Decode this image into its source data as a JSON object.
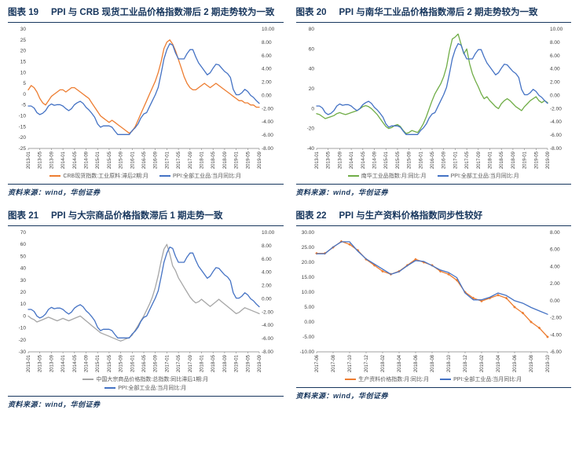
{
  "page": {
    "background": "#ffffff",
    "accent_navy": "#17365D",
    "source_label": "资料来源：wind，华创证券"
  },
  "axes": {
    "months_2013_2019": [
      "2013-01",
      "2013-02",
      "2013-03",
      "2013-04",
      "2013-05",
      "2013-06",
      "2013-07",
      "2013-08",
      "2013-09",
      "2013-10",
      "2013-11",
      "2013-12",
      "2014-01",
      "2014-02",
      "2014-03",
      "2014-04",
      "2014-05",
      "2014-06",
      "2014-07",
      "2014-08",
      "2014-09",
      "2014-10",
      "2014-11",
      "2014-12",
      "2015-01",
      "2015-02",
      "2015-03",
      "2015-04",
      "2015-05",
      "2015-06",
      "2015-07",
      "2015-08",
      "2015-09",
      "2015-10",
      "2015-11",
      "2015-12",
      "2016-01",
      "2016-02",
      "2016-03",
      "2016-04",
      "2016-05",
      "2016-06",
      "2016-07",
      "2016-08",
      "2016-09",
      "2016-10",
      "2016-11",
      "2016-12",
      "2017-01",
      "2017-02",
      "2017-03",
      "2017-04",
      "2017-05",
      "2017-06",
      "2017-07",
      "2017-08",
      "2017-09",
      "2017-10",
      "2017-11",
      "2017-12",
      "2018-01",
      "2018-02",
      "2018-03",
      "2018-04",
      "2018-05",
      "2018-06",
      "2018-07",
      "2018-08",
      "2018-09",
      "2018-10",
      "2018-11",
      "2018-12",
      "2019-01",
      "2019-02",
      "2019-03",
      "2019-04",
      "2019-05",
      "2019-06",
      "2019-07",
      "2019-08",
      "2019-09"
    ],
    "months_2017_2019": [
      "2017-06",
      "2017-07",
      "2017-08",
      "2017-09",
      "2017-10",
      "2017-11",
      "2017-12",
      "2018-01",
      "2018-02",
      "2018-03",
      "2018-04",
      "2018-05",
      "2018-06",
      "2018-07",
      "2018-08",
      "2018-09",
      "2018-10",
      "2018-11",
      "2018-12",
      "2019-01",
      "2019-02",
      "2019-03",
      "2019-04",
      "2019-05",
      "2019-06",
      "2019-07",
      "2019-08",
      "2019-09",
      "2019-10"
    ]
  },
  "chart_data": [
    {
      "type": "line",
      "fig_label": "图表 19",
      "title": "PPI 与 CRB 现货工业品价格指数滞后 2 期走势较为一致",
      "x_key": "months_2013_2019",
      "tick_every": 4,
      "ylim_left": [
        -25,
        30
      ],
      "left_ticks": [
        30,
        25,
        20,
        15,
        10,
        5,
        0,
        -5,
        -10,
        -15,
        -20,
        -25
      ],
      "left_decimals": 0,
      "ylim_right": [
        -8,
        10
      ],
      "right_ticks": [
        10,
        8,
        6,
        4,
        2,
        0,
        -2,
        -4,
        -6,
        -8
      ],
      "legend_stacked": false,
      "series": [
        {
          "name": "CRB现货指数:工业原料:滞后2期:月",
          "color": "#ED7D31",
          "axis": "left",
          "marker": false,
          "values": [
            2,
            4,
            3,
            1,
            -2,
            -4,
            -5,
            -3,
            -1,
            0,
            1,
            2,
            2,
            1,
            2,
            3,
            3,
            2,
            1,
            0,
            -1,
            -2,
            -4,
            -6,
            -8,
            -10,
            -11,
            -12,
            -13,
            -12,
            -13,
            -14,
            -15,
            -16,
            -17,
            -18,
            -17,
            -15,
            -12,
            -9,
            -6,
            -3,
            0,
            3,
            6,
            10,
            15,
            21,
            24,
            25,
            23,
            20,
            16,
            12,
            8,
            5,
            3,
            2,
            2,
            3,
            4,
            5,
            4,
            3,
            4,
            5,
            4,
            3,
            2,
            1,
            0,
            -1,
            -2,
            -3,
            -3,
            -4,
            -4,
            -5,
            -5,
            -6,
            -6
          ]
        },
        {
          "name": "PPI:全部工业品:当月同比:月",
          "color": "#4472C4",
          "axis": "right",
          "marker": false,
          "values": [
            -1.6,
            -1.6,
            -1.9,
            -2.6,
            -2.9,
            -2.7,
            -2.3,
            -1.6,
            -1.3,
            -1.5,
            -1.4,
            -1.4,
            -1.6,
            -2.0,
            -2.3,
            -2.0,
            -1.4,
            -1.1,
            -0.9,
            -1.2,
            -1.8,
            -2.2,
            -2.7,
            -3.3,
            -4.3,
            -4.8,
            -4.6,
            -4.6,
            -4.6,
            -4.8,
            -5.4,
            -5.9,
            -5.9,
            -5.9,
            -5.9,
            -5.9,
            -5.3,
            -4.9,
            -4.3,
            -3.4,
            -2.8,
            -2.6,
            -1.7,
            -0.8,
            0.1,
            1.2,
            3.3,
            5.5,
            6.9,
            7.8,
            7.6,
            6.4,
            5.5,
            5.5,
            5.5,
            6.3,
            6.9,
            6.9,
            5.8,
            4.9,
            4.3,
            3.7,
            3.1,
            3.4,
            4.1,
            4.7,
            4.6,
            4.1,
            3.6,
            3.3,
            2.7,
            0.9,
            0.1,
            0.1,
            0.4,
            0.9,
            0.6,
            0.0,
            -0.3,
            -0.8,
            -1.2
          ]
        }
      ]
    },
    {
      "type": "line",
      "fig_label": "图表 20",
      "title": "PPI 与南华工业品价格指数滞后 2 期走势较为一致",
      "x_key": "months_2013_2019",
      "tick_every": 4,
      "ylim_left": [
        -40,
        80
      ],
      "left_ticks": [
        80,
        60,
        40,
        20,
        0,
        -20,
        -40
      ],
      "left_decimals": 0,
      "ylim_right": [
        -8,
        10
      ],
      "right_ticks": [
        10,
        8,
        6,
        4,
        2,
        0,
        -2,
        -4,
        -6,
        -8
      ],
      "legend_stacked": false,
      "series": [
        {
          "name": "南华工业品指数:月:同比:月",
          "color": "#70AD47",
          "axis": "left",
          "marker": false,
          "values": [
            -5,
            -6,
            -8,
            -10,
            -9,
            -8,
            -7,
            -5,
            -4,
            -5,
            -6,
            -5,
            -4,
            -3,
            -2,
            0,
            2,
            3,
            2,
            0,
            -3,
            -6,
            -10,
            -14,
            -18,
            -20,
            -19,
            -17,
            -16,
            -18,
            -22,
            -25,
            -24,
            -22,
            -23,
            -24,
            -20,
            -15,
            -8,
            0,
            8,
            15,
            20,
            25,
            32,
            42,
            58,
            70,
            72,
            75,
            65,
            55,
            60,
            45,
            35,
            28,
            22,
            15,
            10,
            12,
            8,
            5,
            2,
            0,
            5,
            8,
            10,
            8,
            5,
            2,
            0,
            -2,
            2,
            5,
            8,
            10,
            12,
            8,
            6,
            8,
            6
          ]
        },
        {
          "name": "PPI:全部工业品:当月同比:月",
          "color": "#4472C4",
          "axis": "right",
          "marker": false,
          "values": [
            -1.6,
            -1.6,
            -1.9,
            -2.6,
            -2.9,
            -2.7,
            -2.3,
            -1.6,
            -1.3,
            -1.5,
            -1.4,
            -1.4,
            -1.6,
            -2.0,
            -2.3,
            -2.0,
            -1.4,
            -1.1,
            -0.9,
            -1.2,
            -1.8,
            -2.2,
            -2.7,
            -3.3,
            -4.3,
            -4.8,
            -4.6,
            -4.6,
            -4.6,
            -4.8,
            -5.4,
            -5.9,
            -5.9,
            -5.9,
            -5.9,
            -5.9,
            -5.3,
            -4.9,
            -4.3,
            -3.4,
            -2.8,
            -2.6,
            -1.7,
            -0.8,
            0.1,
            1.2,
            3.3,
            5.5,
            6.9,
            7.8,
            7.6,
            6.4,
            5.5,
            5.5,
            5.5,
            6.3,
            6.9,
            6.9,
            5.8,
            4.9,
            4.3,
            3.7,
            3.1,
            3.4,
            4.1,
            4.7,
            4.6,
            4.1,
            3.6,
            3.3,
            2.7,
            0.9,
            0.1,
            0.1,
            0.4,
            0.9,
            0.6,
            0.0,
            -0.3,
            -0.8,
            -1.2
          ]
        }
      ]
    },
    {
      "type": "line",
      "fig_label": "图表 21",
      "title": "PPI 与大宗商品价格指数滞后 1 期走势一致",
      "x_key": "months_2013_2019",
      "tick_every": 4,
      "ylim_left": [
        -30,
        70
      ],
      "left_ticks": [
        70,
        60,
        50,
        40,
        30,
        20,
        10,
        0,
        -10,
        -20,
        -30
      ],
      "left_decimals": 0,
      "ylim_right": [
        -8,
        10
      ],
      "right_ticks": [
        10,
        8,
        6,
        4,
        2,
        0,
        -2,
        -4,
        -6,
        -8
      ],
      "legend_stacked": true,
      "series": [
        {
          "name": "中国大宗商品价格指数:总指数:同比滞后1期:月",
          "color": "#A6A6A6",
          "axis": "left",
          "marker": false,
          "values": [
            0,
            -2,
            -3,
            -5,
            -4,
            -3,
            -2,
            -1,
            -2,
            -3,
            -4,
            -3,
            -2,
            -3,
            -4,
            -3,
            -2,
            -1,
            0,
            -2,
            -4,
            -6,
            -8,
            -10,
            -12,
            -14,
            -15,
            -16,
            -17,
            -18,
            -19,
            -20,
            -21,
            -20,
            -19,
            -18,
            -16,
            -12,
            -8,
            -4,
            0,
            5,
            10,
            16,
            24,
            34,
            46,
            56,
            60,
            52,
            42,
            38,
            32,
            28,
            24,
            20,
            16,
            13,
            11,
            12,
            14,
            12,
            10,
            8,
            10,
            12,
            14,
            12,
            10,
            8,
            6,
            4,
            2,
            3,
            5,
            7,
            6,
            5,
            4,
            3,
            2
          ]
        },
        {
          "name": "PPI:全部工业品:当月同比:月",
          "color": "#4472C4",
          "axis": "right",
          "marker": false,
          "values": [
            -1.6,
            -1.6,
            -1.9,
            -2.6,
            -2.9,
            -2.7,
            -2.3,
            -1.6,
            -1.3,
            -1.5,
            -1.4,
            -1.4,
            -1.6,
            -2.0,
            -2.3,
            -2.0,
            -1.4,
            -1.1,
            -0.9,
            -1.2,
            -1.8,
            -2.2,
            -2.7,
            -3.3,
            -4.3,
            -4.8,
            -4.6,
            -4.6,
            -4.6,
            -4.8,
            -5.4,
            -5.9,
            -5.9,
            -5.9,
            -5.9,
            -5.9,
            -5.3,
            -4.9,
            -4.3,
            -3.4,
            -2.8,
            -2.6,
            -1.7,
            -0.8,
            0.1,
            1.2,
            3.3,
            5.5,
            6.9,
            7.8,
            7.6,
            6.4,
            5.5,
            5.5,
            5.5,
            6.3,
            6.9,
            6.9,
            5.8,
            4.9,
            4.3,
            3.7,
            3.1,
            3.4,
            4.1,
            4.7,
            4.6,
            4.1,
            3.6,
            3.3,
            2.7,
            0.9,
            0.1,
            0.1,
            0.4,
            0.9,
            0.6,
            0.0,
            -0.3,
            -0.8,
            -1.2
          ]
        }
      ]
    },
    {
      "type": "line",
      "fig_label": "图表 22",
      "title": "PPI 与生产资料价格指数同步性较好",
      "x_key": "months_2017_2019",
      "tick_every": 2,
      "ylim_left": [
        -10,
        30
      ],
      "left_ticks": [
        30,
        25,
        20,
        15,
        10,
        5,
        0,
        -5,
        -10
      ],
      "left_decimals": 2,
      "ylim_right": [
        -6,
        8
      ],
      "right_ticks": [
        8,
        6,
        4,
        2,
        0,
        -2,
        -4,
        -6
      ],
      "legend_stacked": false,
      "series": [
        {
          "name": "生产资料价格指数:月:同比:月",
          "color": "#ED7D31",
          "axis": "left",
          "marker": true,
          "values": [
            23,
            23,
            25,
            27,
            26,
            24,
            21,
            19,
            17,
            16,
            17,
            19,
            21,
            20,
            19,
            17,
            16,
            14,
            10,
            8,
            7,
            8,
            9,
            8,
            5,
            3,
            0,
            -2,
            -5
          ]
        },
        {
          "name": "PPI:全部工业品:当月同比:月",
          "color": "#4472C4",
          "axis": "right",
          "marker": false,
          "values": [
            5.5,
            5.5,
            6.3,
            6.9,
            6.9,
            5.8,
            4.9,
            4.3,
            3.7,
            3.1,
            3.4,
            4.1,
            4.7,
            4.6,
            4.1,
            3.6,
            3.3,
            2.7,
            0.9,
            0.1,
            0.1,
            0.4,
            0.9,
            0.6,
            0.0,
            -0.3,
            -0.8,
            -1.2,
            -1.6
          ]
        }
      ]
    }
  ]
}
